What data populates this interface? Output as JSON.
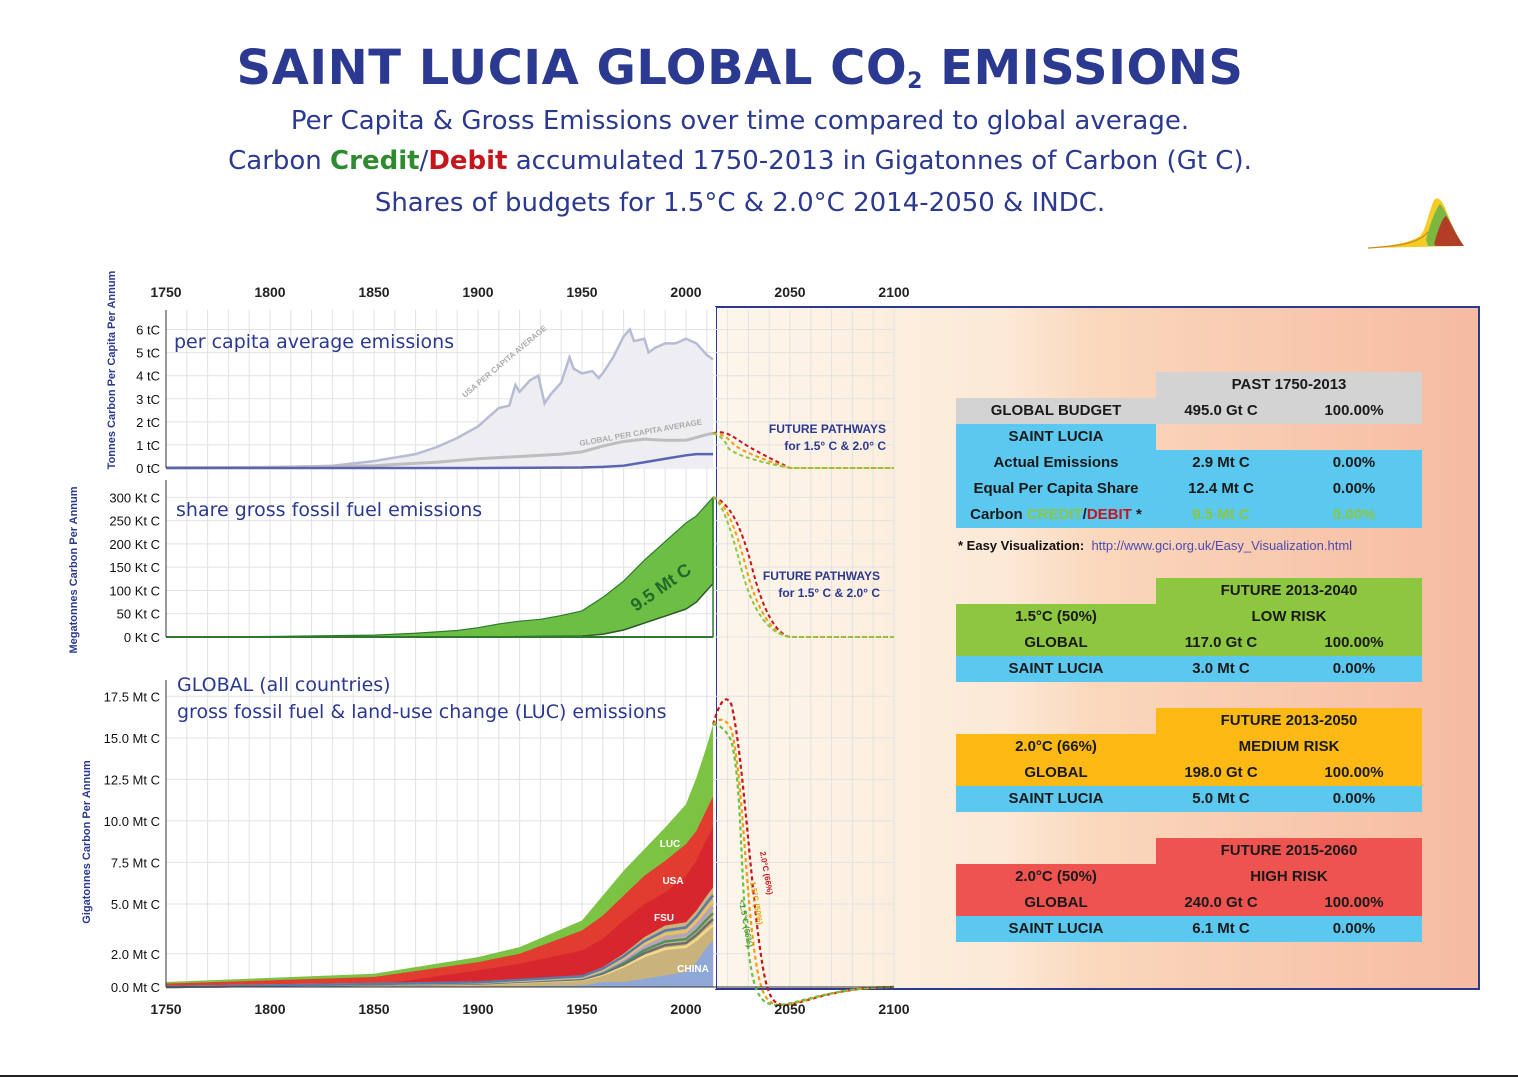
{
  "header": {
    "title_main": "SAINT LUCIA GLOBAL CO",
    "title_sub": "2",
    "title_end": " EMISSIONS",
    "line1": "Per Capita & Gross Emissions over time compared to global average.",
    "line2_a": "Carbon ",
    "line2_credit": "Credit",
    "line2_slash": "/",
    "line2_debit": "Debit",
    "line2_b": " accumulated 1750-2013 in Gigatonnes of Carbon (Gt C).",
    "line3": "Shares of budgets for 1.5°C & 2.0°C 2014-2050 & INDC."
  },
  "colors": {
    "title": "#2b3990",
    "credit": "#2e8b2e",
    "debit": "#c4161c",
    "past_header": "#d3d3d3",
    "saint_lucia_row": "#5bc8f0",
    "low_risk": "#8dc63f",
    "medium_risk": "#fdb913",
    "high_risk": "#ef5350",
    "future_bg": "#f7c1a6"
  },
  "chart_data": [
    {
      "type": "line",
      "panel": "per-capita",
      "title": "per capita average emissions",
      "ylabel": "Tonnes Carbon Per Capita Per Annum",
      "xlim": [
        1750,
        2100
      ],
      "x_ticks": [
        "1750",
        "1800",
        "1850",
        "1900",
        "1950",
        "2000",
        "2050",
        "2100"
      ],
      "y_ticks": [
        "0 tC",
        "1 tC",
        "2 tC",
        "3 tC",
        "4 tC",
        "5 tC",
        "6 tC"
      ],
      "ylim": [
        0,
        6.5
      ],
      "series": [
        {
          "name": "USA PER CAPITA AVERAGE",
          "x": [
            1750,
            1800,
            1830,
            1850,
            1870,
            1880,
            1890,
            1900,
            1905,
            1910,
            1915,
            1918,
            1920,
            1925,
            1929,
            1932,
            1935,
            1940,
            1944,
            1946,
            1950,
            1955,
            1958,
            1960,
            1965,
            1970,
            1973,
            1975,
            1980,
            1982,
            1985,
            1990,
            1995,
            2000,
            2005,
            2010,
            2013
          ],
          "y": [
            0,
            0.02,
            0.1,
            0.3,
            0.6,
            0.9,
            1.3,
            1.8,
            2.2,
            2.6,
            2.7,
            3.6,
            3.3,
            3.8,
            4.0,
            2.8,
            3.2,
            3.7,
            4.8,
            4.3,
            4.1,
            4.2,
            3.9,
            4.1,
            4.8,
            5.7,
            6.0,
            5.5,
            5.6,
            5.0,
            5.2,
            5.4,
            5.4,
            5.6,
            5.4,
            4.9,
            4.7
          ]
        },
        {
          "name": "GLOBAL PER CAPITA AVERAGE",
          "x": [
            1750,
            1800,
            1850,
            1880,
            1900,
            1920,
            1940,
            1950,
            1960,
            1970,
            1980,
            1990,
            2000,
            2010,
            2013
          ],
          "y": [
            0.01,
            0.03,
            0.1,
            0.25,
            0.4,
            0.5,
            0.6,
            0.7,
            0.95,
            1.15,
            1.25,
            1.2,
            1.2,
            1.45,
            1.5
          ]
        },
        {
          "name": "Saint Lucia",
          "x": [
            1750,
            1900,
            1950,
            1960,
            1970,
            1980,
            1990,
            2000,
            2005,
            2010,
            2013
          ],
          "y": [
            0,
            0,
            0.02,
            0.05,
            0.1,
            0.25,
            0.4,
            0.55,
            0.6,
            0.6,
            0.6
          ]
        }
      ],
      "annotations": [
        "FUTURE PATHWAYS",
        "for 1.5° C & 2.0° C"
      ]
    },
    {
      "type": "area",
      "panel": "gross-fossil-fuel",
      "title": "share gross fossil fuel emissions",
      "ylabel": "Megatonnes Carbon Per Annum",
      "xlim": [
        1750,
        2100
      ],
      "y_ticks": [
        "0 Kt C",
        "50 Kt C",
        "100 Kt C",
        "150 Kt C",
        "200 Kt C",
        "250 Kt C",
        "300 Kt C"
      ],
      "ylim": [
        0,
        300
      ],
      "series": [
        {
          "name": "Equal Per Capita Share",
          "x": [
            1750,
            1800,
            1850,
            1870,
            1890,
            1900,
            1910,
            1920,
            1930,
            1940,
            1950,
            1960,
            1970,
            1980,
            1990,
            2000,
            2005,
            2010,
            2013
          ],
          "y": [
            0,
            1,
            4,
            8,
            14,
            20,
            28,
            34,
            38,
            46,
            56,
            85,
            120,
            165,
            205,
            245,
            260,
            285,
            300
          ]
        },
        {
          "name": "Actual Emissions",
          "x": [
            1750,
            1900,
            1950,
            1960,
            1970,
            1980,
            1990,
            2000,
            2005,
            2010,
            2013
          ],
          "y": [
            0,
            0,
            2,
            6,
            15,
            30,
            45,
            60,
            75,
            100,
            115
          ]
        }
      ],
      "area_label": "9.5 Mt C",
      "annotations": [
        "FUTURE PATHWAYS",
        "for 1.5° C & 2.0° C"
      ]
    },
    {
      "type": "area",
      "panel": "global-all-countries",
      "title": "GLOBAL (all countries)",
      "subtitle": "gross fossil fuel & land-use change (LUC) emissions",
      "ylabel": "Gigatonnes Carbon Per Annum",
      "xlim": [
        1750,
        2100
      ],
      "y_ticks": [
        "0.0 Mt C",
        "2.0 Mt C",
        "5.0 Mt C",
        "7.5 Mt C",
        "10.0 Mt C",
        "12.5 Mt C",
        "15.0 Mt C",
        "17.5 Mt C"
      ],
      "ylim": [
        0,
        17.5
      ],
      "series": [
        {
          "name": "CHINA",
          "x": [
            1750,
            1900,
            1950,
            1960,
            1970,
            1980,
            1990,
            2000,
            2005,
            2010,
            2013
          ],
          "y": [
            0,
            0,
            0.1,
            0.3,
            0.3,
            0.5,
            0.7,
            0.9,
            1.5,
            2.4,
            2.8
          ]
        },
        {
          "name": "FSU",
          "x": [
            1750,
            1900,
            1950,
            1960,
            1970,
            1980,
            1990,
            2000,
            2005,
            2010,
            2013
          ],
          "y": [
            0,
            0.3,
            0.7,
            1.2,
            2.0,
            3.0,
            3.7,
            3.9,
            4.6,
            5.5,
            6.0
          ]
        },
        {
          "name": "USA",
          "x": [
            1750,
            1850,
            1900,
            1920,
            1950,
            1960,
            1970,
            1980,
            1990,
            2000,
            2005,
            2010,
            2013
          ],
          "y": [
            0,
            0.1,
            1.0,
            1.4,
            2.2,
            2.9,
            4.0,
            5.0,
            5.7,
            6.7,
            7.6,
            8.9,
            9.6
          ]
        },
        {
          "name": "LUC",
          "x": [
            1750,
            1850,
            1900,
            1920,
            1950,
            1960,
            1970,
            1980,
            1990,
            2000,
            2005,
            2010,
            2013
          ],
          "y": [
            0.2,
            0.6,
            1.5,
            2.0,
            3.4,
            4.3,
            5.5,
            6.7,
            7.6,
            8.6,
            9.4,
            10.7,
            11.5
          ]
        },
        {
          "name": "",
          "x": [
            1750,
            1850,
            1900,
            1920,
            1950,
            1960,
            1970,
            1980,
            1990,
            2000,
            2005,
            2010,
            2013
          ],
          "y": [
            0.3,
            0.8,
            1.8,
            2.4,
            4.0,
            5.5,
            7.0,
            8.3,
            9.6,
            11.0,
            12.6,
            14.5,
            15.8
          ]
        }
      ],
      "future_labels": [
        "2.0°C (66%)",
        "1.5°C (50%)",
        "<1.5°C (66%)"
      ]
    }
  ],
  "tables": {
    "past": {
      "header": "PAST 1750-2013",
      "rows": [
        {
          "label": "GLOBAL BUDGET",
          "value": "495.0 Gt C",
          "pct": "100.00%"
        },
        {
          "label": "SAINT LUCIA",
          "value": "",
          "pct": ""
        },
        {
          "label": "Actual Emissions",
          "value": "2.9 Mt C",
          "pct": "0.00%"
        },
        {
          "label": "Equal Per Capita Share",
          "value": "12.4 Mt C",
          "pct": "0.00%"
        }
      ],
      "credit_row": {
        "prefix": "Carbon ",
        "credit": "CREDIT",
        "slash": "/",
        "debit": "DEBIT",
        "suffix": " *",
        "value": "9.5 Mt C",
        "pct": "0.00%"
      }
    },
    "note": {
      "text": "* Easy Visualization:",
      "link": "http://www.gci.org.uk/Easy_Visualization.html"
    },
    "future_low": {
      "header": "FUTURE 2013-2040",
      "scenario": "1.5°C (50%)",
      "risk": "LOW RISK",
      "global": {
        "label": "GLOBAL",
        "value": "117.0 Gt C",
        "pct": "100.00%"
      },
      "country": {
        "label": "SAINT LUCIA",
        "value": "3.0 Mt C",
        "pct": "0.00%"
      }
    },
    "future_medium": {
      "header": "FUTURE 2013-2050",
      "scenario": "2.0°C (66%)",
      "risk": "MEDIUM RISK",
      "global": {
        "label": "GLOBAL",
        "value": "198.0 Gt C",
        "pct": "100.00%"
      },
      "country": {
        "label": "SAINT LUCIA",
        "value": "5.0 Mt C",
        "pct": "0.00%"
      }
    },
    "future_high": {
      "header": "FUTURE 2015-2060",
      "scenario": "2.0°C (50%)",
      "risk": "HIGH RISK",
      "global": {
        "label": "GLOBAL",
        "value": "240.0 Gt C",
        "pct": "100.00%"
      },
      "country": {
        "label": "SAINT LUCIA",
        "value": "6.1 Mt C",
        "pct": "0.00%"
      }
    }
  }
}
